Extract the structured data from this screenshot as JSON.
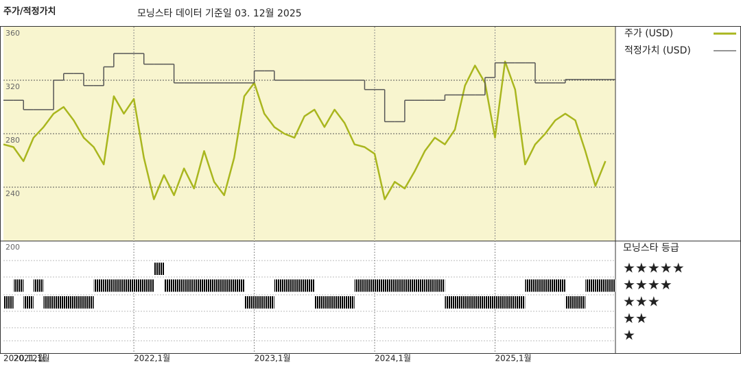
{
  "chart_data": {
    "type": "line",
    "title": "주가/적정가치",
    "subtitle": "모닝스타 데이터 기준일 03. 12월 2025",
    "x": [
      "2020-12",
      "2021-01",
      "2021-02",
      "2021-03",
      "2021-04",
      "2021-05",
      "2021-06",
      "2021-07",
      "2021-08",
      "2021-09",
      "2021-10",
      "2021-11",
      "2021-12",
      "2022-01",
      "2022-02",
      "2022-03",
      "2022-04",
      "2022-05",
      "2022-06",
      "2022-07",
      "2022-08",
      "2022-09",
      "2022-10",
      "2022-11",
      "2022-12",
      "2023-01",
      "2023-02",
      "2023-03",
      "2023-04",
      "2023-05",
      "2023-06",
      "2023-07",
      "2023-08",
      "2023-09",
      "2023-10",
      "2023-11",
      "2023-12",
      "2024-01",
      "2024-02",
      "2024-03",
      "2024-04",
      "2024-05",
      "2024-06",
      "2024-07",
      "2024-08",
      "2024-09",
      "2024-10",
      "2024-11",
      "2024-12",
      "2025-01",
      "2025-02",
      "2025-03",
      "2025-04",
      "2025-05",
      "2025-06",
      "2025-07",
      "2025-08",
      "2025-09",
      "2025-10",
      "2025-11",
      "2025-12"
    ],
    "series": [
      {
        "name": "주가 (USD)",
        "color": "#a9b61e",
        "shape": "linear",
        "values": [
          272,
          270,
          259.5,
          277,
          285,
          295,
          300,
          290,
          277,
          270,
          257,
          308,
          295,
          306,
          262,
          231,
          249,
          234,
          254,
          239,
          267,
          244,
          234,
          262,
          308,
          318,
          295,
          285,
          280,
          277,
          293,
          298,
          285,
          298,
          288,
          272,
          270,
          265,
          231,
          244,
          239,
          252,
          267,
          277,
          272,
          283,
          316,
          331,
          318,
          277,
          334,
          313,
          257,
          272,
          280,
          290,
          295,
          290,
          267,
          241,
          259.5
        ]
      },
      {
        "name": "적정가치 (USD)",
        "color": "#555555",
        "shape": "step",
        "values": [
          305,
          305,
          298,
          298,
          298,
          320,
          325,
          325,
          316,
          316,
          330,
          340,
          340,
          340,
          332,
          332,
          332,
          318,
          318,
          318,
          318,
          318,
          318,
          318,
          318,
          327,
          327,
          320,
          320,
          320,
          320,
          320,
          320,
          320,
          320,
          320,
          313,
          313,
          289,
          289,
          305,
          305,
          305,
          305,
          309,
          309,
          309,
          309,
          322,
          333,
          333,
          333,
          333,
          318,
          318,
          318,
          320.5,
          320.5,
          320.5,
          320.5,
          320.5
        ]
      }
    ],
    "xlim": [
      "2020-12",
      "2026-01"
    ],
    "xticks": [
      {
        "value": "2020-12",
        "label": "2020,12월"
      },
      {
        "value": "2021-01",
        "label": "2021,1월"
      },
      {
        "value": "2022-01",
        "label": "2022,1월"
      },
      {
        "value": "2023-01",
        "label": "2023,1월"
      },
      {
        "value": "2024-01",
        "label": "2024,1월"
      },
      {
        "value": "2025-01",
        "label": "2025,1월"
      }
    ],
    "ylim": [
      200,
      360
    ],
    "yticks": [
      200,
      240,
      280,
      320,
      360
    ],
    "grid": true,
    "rating_title": "모닝스타 등급",
    "rating_labels": [
      "★★★★★",
      "★★★★",
      "★★★",
      "★★",
      "★"
    ],
    "rating_levels": [
      5,
      4,
      3,
      2,
      1
    ],
    "rating_colors": {
      "5": "#3c8c72",
      "other": "#222222"
    },
    "ratings": [
      3,
      4,
      3,
      4,
      3,
      3,
      3,
      3,
      3,
      4,
      4,
      4,
      4,
      4,
      4,
      5,
      4,
      4,
      4,
      4,
      4,
      4,
      4,
      4,
      3,
      3,
      3,
      4,
      4,
      4,
      4,
      3,
      3,
      3,
      3,
      4,
      4,
      4,
      4,
      4,
      4,
      4,
      4,
      4,
      3,
      3,
      3,
      3,
      3,
      3,
      3,
      3,
      4,
      4,
      4,
      4,
      3,
      3,
      4,
      4,
      4
    ]
  }
}
